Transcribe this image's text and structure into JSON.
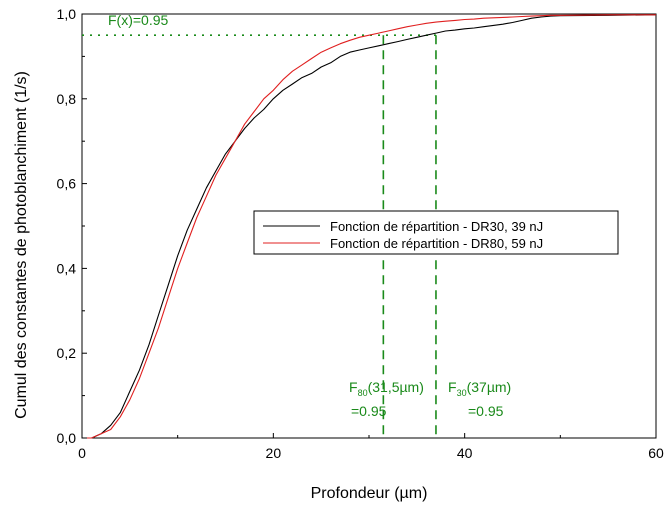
{
  "chart_data": {
    "type": "line",
    "title": "",
    "xlabel": "Profondeur (µm)",
    "ylabel": "Cumul des constantes de photoblanchiment (1/s)",
    "xlim": [
      0,
      60
    ],
    "ylim": [
      0,
      1.0
    ],
    "x_ticks": [
      "0",
      "20",
      "40",
      "60"
    ],
    "y_ticks": [
      "0,0",
      "0,2",
      "0,4",
      "0,6",
      "0,8",
      "1,0"
    ],
    "grid": false,
    "legend_position": "center-right",
    "series": [
      {
        "name": "Fonction de répartition - DR30, 39 nJ",
        "color": "#000000",
        "x": [
          0,
          1,
          2,
          3,
          4,
          5,
          6,
          7,
          8,
          9,
          10,
          11,
          12,
          13,
          14,
          15,
          16,
          17,
          18,
          19,
          20,
          21,
          22,
          23,
          24,
          25,
          26,
          27,
          28,
          29,
          30,
          31,
          32,
          33,
          34,
          35,
          36,
          37,
          38,
          39,
          40,
          41,
          42,
          43,
          44,
          45,
          46,
          47,
          48,
          49,
          50,
          55,
          60
        ],
        "y": [
          0.0,
          0.0,
          0.01,
          0.03,
          0.06,
          0.11,
          0.16,
          0.22,
          0.29,
          0.36,
          0.43,
          0.49,
          0.54,
          0.59,
          0.63,
          0.67,
          0.7,
          0.73,
          0.755,
          0.775,
          0.8,
          0.82,
          0.835,
          0.85,
          0.86,
          0.875,
          0.885,
          0.9,
          0.91,
          0.915,
          0.92,
          0.925,
          0.93,
          0.935,
          0.94,
          0.945,
          0.95,
          0.955,
          0.96,
          0.962,
          0.965,
          0.967,
          0.97,
          0.973,
          0.976,
          0.98,
          0.985,
          0.99,
          0.993,
          0.995,
          0.996,
          0.997,
          0.998
        ]
      },
      {
        "name": "Fonction de répartition - DR80, 59 nJ",
        "color": "#e02020",
        "x": [
          0,
          1,
          2,
          3,
          4,
          5,
          6,
          7,
          8,
          9,
          10,
          11,
          12,
          13,
          14,
          15,
          16,
          17,
          18,
          19,
          20,
          21,
          22,
          23,
          24,
          25,
          26,
          27,
          28,
          29,
          30,
          31,
          32,
          33,
          34,
          35,
          36,
          37,
          38,
          39,
          40,
          41,
          42,
          43,
          44,
          45,
          46,
          47,
          48,
          49,
          50,
          55,
          60
        ],
        "y": [
          0.0,
          0.0,
          0.01,
          0.02,
          0.05,
          0.09,
          0.14,
          0.2,
          0.26,
          0.33,
          0.4,
          0.46,
          0.52,
          0.57,
          0.62,
          0.66,
          0.7,
          0.74,
          0.77,
          0.8,
          0.82,
          0.845,
          0.865,
          0.88,
          0.895,
          0.91,
          0.92,
          0.93,
          0.938,
          0.945,
          0.95,
          0.955,
          0.96,
          0.965,
          0.97,
          0.974,
          0.978,
          0.981,
          0.983,
          0.985,
          0.987,
          0.988,
          0.99,
          0.991,
          0.992,
          0.993,
          0.994,
          0.995,
          0.996,
          0.997,
          0.997,
          0.998,
          0.998
        ]
      }
    ],
    "reference_lines": {
      "horizontal_y": 0.95,
      "vertical_x": [
        31.5,
        37
      ],
      "color": "#1a8a1a"
    },
    "annotations": {
      "fx_label": "F(x)=0.95",
      "f80_main": "F",
      "f80_sub": "80",
      "f80_rest": "(31,5µm)",
      "f80_eq": "=0.95",
      "f30_main": "F",
      "f30_sub": "30",
      "f30_rest": "(37µm)",
      "f30_eq": "=0.95"
    }
  }
}
